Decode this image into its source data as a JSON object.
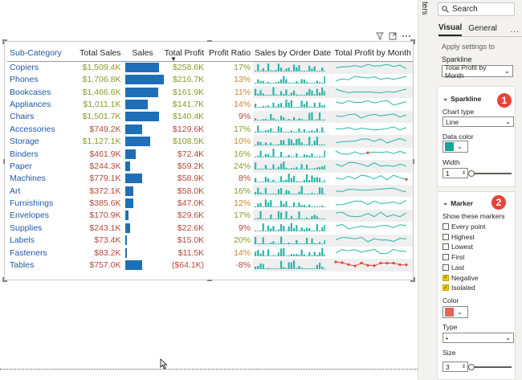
{
  "visual": {
    "columns": [
      "Sub-Category",
      "Total Sales",
      "Sales",
      "Total Profit",
      "Profit Ratio",
      "Sales by Order Date",
      "Total Profit by Month"
    ],
    "sort_column_index": 3,
    "header_icons": [
      "filter-icon",
      "focus-mode-icon",
      "more-options-icon"
    ],
    "rows": [
      {
        "sub": "Copiers",
        "total_sales": "$1,509.4K",
        "sales_value": 1509.4,
        "total_profit": "$258.6K",
        "profit_ratio": "17%"
      },
      {
        "sub": "Phones",
        "total_sales": "$1,706.8K",
        "sales_value": 1706.8,
        "total_profit": "$216.7K",
        "profit_ratio": "13%"
      },
      {
        "sub": "Bookcases",
        "total_sales": "$1,466.6K",
        "sales_value": 1466.6,
        "total_profit": "$161.9K",
        "profit_ratio": "11%"
      },
      {
        "sub": "Appliances",
        "total_sales": "$1,011.1K",
        "sales_value": 1011.1,
        "total_profit": "$141.7K",
        "profit_ratio": "14%"
      },
      {
        "sub": "Chairs",
        "total_sales": "$1,501.7K",
        "sales_value": 1501.7,
        "total_profit": "$140.4K",
        "profit_ratio": "9%"
      },
      {
        "sub": "Accessories",
        "total_sales": "$749.2K",
        "sales_value": 749.2,
        "total_profit": "$129.6K",
        "profit_ratio": "17%"
      },
      {
        "sub": "Storage",
        "total_sales": "$1,127.1K",
        "sales_value": 1127.1,
        "total_profit": "$108.5K",
        "profit_ratio": "10%"
      },
      {
        "sub": "Binders",
        "total_sales": "$461.9K",
        "sales_value": 461.9,
        "total_profit": "$72.4K",
        "profit_ratio": "16%"
      },
      {
        "sub": "Paper",
        "total_sales": "$244.3K",
        "sales_value": 244.3,
        "total_profit": "$59.2K",
        "profit_ratio": "24%"
      },
      {
        "sub": "Machines",
        "total_sales": "$779.1K",
        "sales_value": 779.1,
        "total_profit": "$58.9K",
        "profit_ratio": "8%"
      },
      {
        "sub": "Art",
        "total_sales": "$372.1K",
        "sales_value": 372.1,
        "total_profit": "$58.0K",
        "profit_ratio": "16%"
      },
      {
        "sub": "Furnishings",
        "total_sales": "$385.6K",
        "sales_value": 385.6,
        "total_profit": "$47.0K",
        "profit_ratio": "12%"
      },
      {
        "sub": "Envelopes",
        "total_sales": "$170.9K",
        "sales_value": 170.9,
        "total_profit": "$29.6K",
        "profit_ratio": "17%"
      },
      {
        "sub": "Supplies",
        "total_sales": "$243.1K",
        "sales_value": 243.1,
        "total_profit": "$22.6K",
        "profit_ratio": "9%"
      },
      {
        "sub": "Labels",
        "total_sales": "$73.4K",
        "sales_value": 73.4,
        "total_profit": "$15.0K",
        "profit_ratio": "20%"
      },
      {
        "sub": "Fasteners",
        "total_sales": "$83.2K",
        "sales_value": 83.2,
        "total_profit": "$11.5K",
        "profit_ratio": "14%"
      },
      {
        "sub": "Tables",
        "total_sales": "$757.0K",
        "sales_value": 757.0,
        "total_profit": "($64.1K)",
        "profit_ratio": "-8%"
      }
    ],
    "colors": {
      "subcategory_text": "#1f5aa6",
      "sales_text_high": "#8a9a2a",
      "sales_text_low": "#b5493a",
      "bar": "#1e6fb8",
      "sparkline": "#2bb5a8",
      "sparkline_negative": "#e8443a",
      "profit_ratio_high": "#8a9a2a",
      "profit_ratio_mid": "#c7892a",
      "profit_ratio_low": "#b5493a"
    }
  },
  "side_strip_label": "ters",
  "panel": {
    "search_placeholder": "Search",
    "tabs": [
      "Visual",
      "General"
    ],
    "tab_more": "...",
    "apply_settings": "Apply settings to",
    "sparkline_label": "Sparkline",
    "sparkline_select": "Total Profit by Month",
    "sparkline_card": {
      "title": "Sparkline",
      "callout": "1",
      "chart_type_label": "Chart type",
      "chart_type_value": "Line",
      "data_color_label": "Data color",
      "data_color": "#17a398",
      "width_label": "Width",
      "width_value": "1"
    },
    "marker_card": {
      "title": "Marker",
      "callout": "2",
      "show_markers_label": "Show these markers",
      "options": [
        {
          "label": "Every point",
          "checked": false
        },
        {
          "label": "Highest",
          "checked": false
        },
        {
          "label": "Lowest",
          "checked": false
        },
        {
          "label": "First",
          "checked": false
        },
        {
          "label": "Last",
          "checked": false
        },
        {
          "label": "Negative",
          "checked": true
        },
        {
          "label": "Isolated",
          "checked": true
        }
      ],
      "color_label": "Color",
      "color": "#e8625a",
      "type_label": "Type",
      "type_value": "•",
      "size_label": "Size",
      "size_value": "3"
    }
  }
}
